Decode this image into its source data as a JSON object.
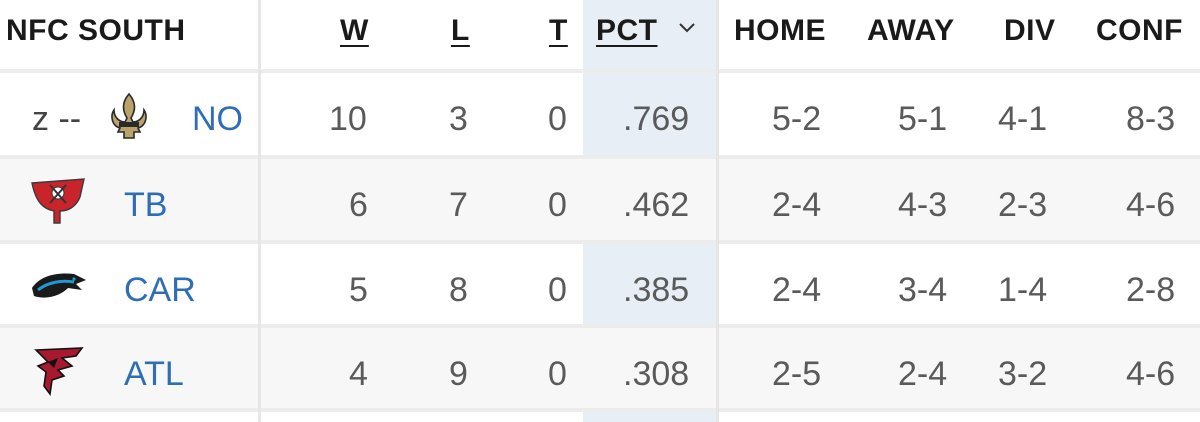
{
  "header": {
    "division": "NFC SOUTH",
    "w": "W",
    "l": "L",
    "t": "T",
    "pct": "PCT",
    "home": "HOME",
    "away": "AWAY",
    "div": "DIV",
    "conf": "CONF"
  },
  "teams": [
    {
      "clinch": "z --",
      "logo": "saints-fleur-de-lis-icon",
      "abbr": "NO",
      "w": "10",
      "l": "3",
      "t": "0",
      "pct": ".769",
      "home": "5-2",
      "away": "5-1",
      "div": "4-1",
      "conf": "8-3"
    },
    {
      "clinch": "",
      "logo": "buccaneers-flag-icon",
      "abbr": "TB",
      "w": "6",
      "l": "7",
      "t": "0",
      "pct": ".462",
      "home": "2-4",
      "away": "4-3",
      "div": "2-3",
      "conf": "4-6"
    },
    {
      "clinch": "",
      "logo": "panthers-icon",
      "abbr": "CAR",
      "w": "5",
      "l": "8",
      "t": "0",
      "pct": ".385",
      "home": "2-4",
      "away": "3-4",
      "div": "1-4",
      "conf": "2-8"
    },
    {
      "clinch": "",
      "logo": "falcons-icon",
      "abbr": "ATL",
      "w": "4",
      "l": "9",
      "t": "0",
      "pct": ".308",
      "home": "2-5",
      "away": "2-4",
      "div": "3-2",
      "conf": "4-6"
    }
  ],
  "colors": {
    "link": "#2f6db5",
    "pct_highlight": "#e8eef6",
    "alt_row": "#f7f7f7"
  }
}
